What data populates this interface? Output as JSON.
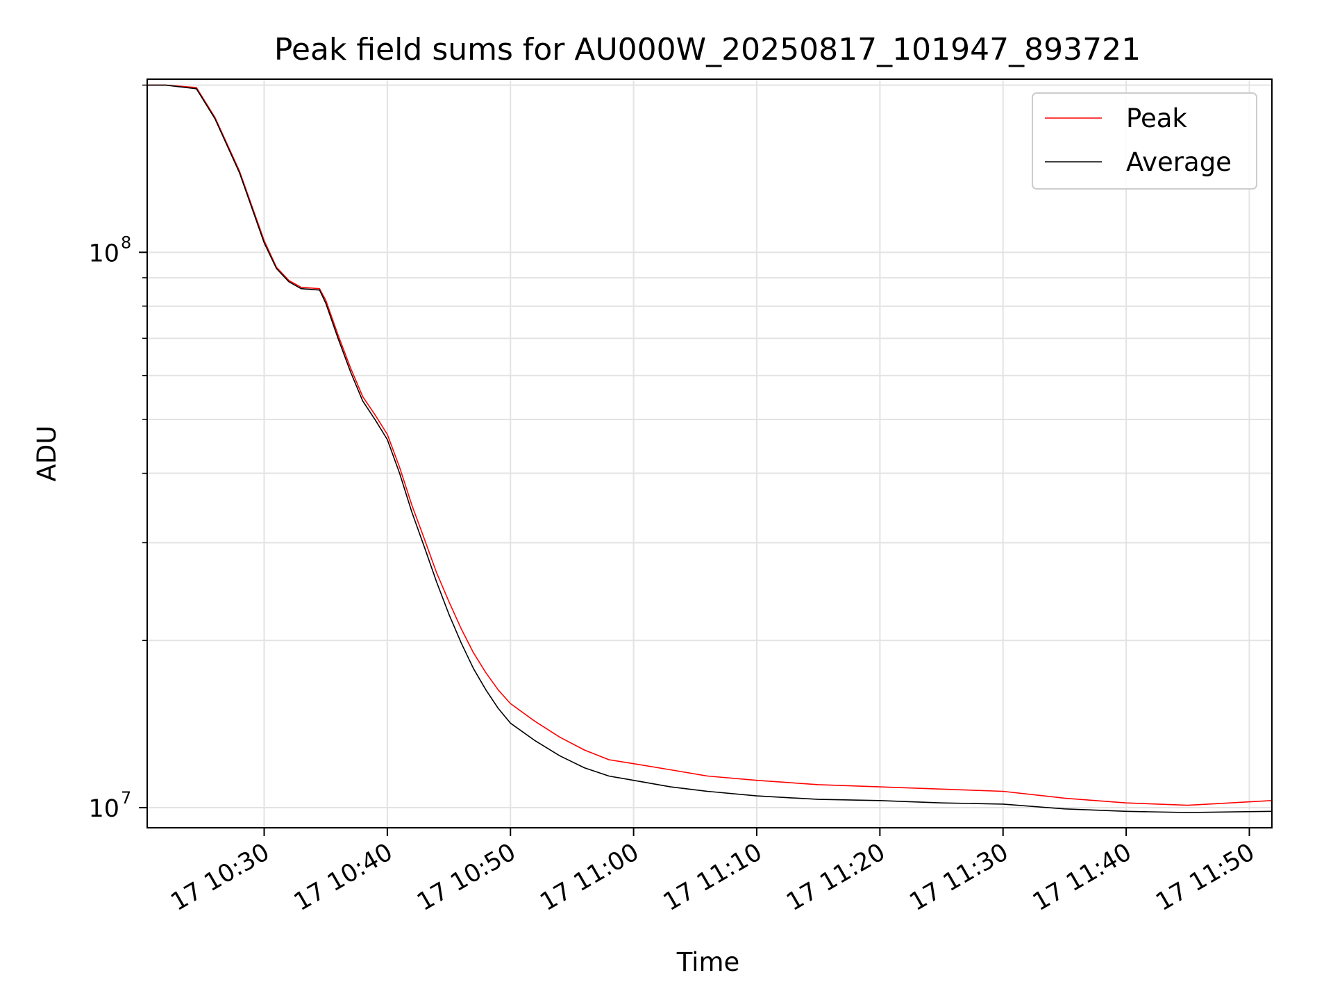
{
  "chart_data": {
    "type": "line",
    "title": "Peak field sums for AU000W_20250817_101947_893721",
    "xlabel": "Time",
    "ylabel": "ADU",
    "y_scale": "log",
    "xlim": [
      "2025-08-17 10:20:30",
      "2025-08-17 11:51:50"
    ],
    "ylim": [
      9200000,
      205000000
    ],
    "grid": true,
    "legend_position": "top-right",
    "x_ticks": [
      {
        "value": "2025-08-17 10:30",
        "label": "17 10:30"
      },
      {
        "value": "2025-08-17 10:40",
        "label": "17 10:40"
      },
      {
        "value": "2025-08-17 10:50",
        "label": "17 10:50"
      },
      {
        "value": "2025-08-17 11:00",
        "label": "17 11:00"
      },
      {
        "value": "2025-08-17 11:10",
        "label": "17 11:10"
      },
      {
        "value": "2025-08-17 11:20",
        "label": "17 11:20"
      },
      {
        "value": "2025-08-17 11:30",
        "label": "17 11:30"
      },
      {
        "value": "2025-08-17 11:40",
        "label": "17 11:40"
      },
      {
        "value": "2025-08-17 11:50",
        "label": "17 11:50"
      }
    ],
    "y_ticks": [
      {
        "value": 10000000,
        "base": "10",
        "exp": "7"
      },
      {
        "value": 100000000,
        "base": "10",
        "exp": "8"
      }
    ],
    "series": [
      {
        "name": "Peak",
        "color": "#ff0000",
        "x": [
          "2025-08-17 10:20:30",
          "2025-08-17 10:22:00",
          "2025-08-17 10:24:30",
          "2025-08-17 10:26:00",
          "2025-08-17 10:28:00",
          "2025-08-17 10:30:00",
          "2025-08-17 10:31:00",
          "2025-08-17 10:32:00",
          "2025-08-17 10:33:00",
          "2025-08-17 10:34:30",
          "2025-08-17 10:35:00",
          "2025-08-17 10:36:00",
          "2025-08-17 10:37:00",
          "2025-08-17 10:38:00",
          "2025-08-17 10:39:00",
          "2025-08-17 10:40:00",
          "2025-08-17 10:41:00",
          "2025-08-17 10:42:00",
          "2025-08-17 10:43:00",
          "2025-08-17 10:44:00",
          "2025-08-17 10:45:00",
          "2025-08-17 10:46:00",
          "2025-08-17 10:47:00",
          "2025-08-17 10:48:00",
          "2025-08-17 10:49:00",
          "2025-08-17 10:50:00",
          "2025-08-17 10:52:00",
          "2025-08-17 10:54:00",
          "2025-08-17 10:56:00",
          "2025-08-17 10:58:00",
          "2025-08-17 11:00:00",
          "2025-08-17 11:03:00",
          "2025-08-17 11:06:00",
          "2025-08-17 11:10:00",
          "2025-08-17 11:15:00",
          "2025-08-17 11:20:00",
          "2025-08-17 11:25:00",
          "2025-08-17 11:30:00",
          "2025-08-17 11:35:00",
          "2025-08-17 11:40:00",
          "2025-08-17 11:45:00",
          "2025-08-17 11:51:50"
        ],
        "y": [
          200000000,
          200000000,
          198000000,
          175000000,
          140000000,
          105000000,
          94000000,
          89000000,
          86500000,
          86000000,
          82000000,
          71000000,
          62000000,
          55000000,
          51000000,
          47000000,
          41000000,
          35000000,
          30500000,
          26500000,
          23500000,
          21000000,
          19000000,
          17500000,
          16300000,
          15400000,
          14300000,
          13400000,
          12700000,
          12200000,
          12000000,
          11700000,
          11400000,
          11200000,
          11000000,
          10900000,
          10800000,
          10700000,
          10400000,
          10200000,
          10100000,
          10300000
        ]
      },
      {
        "name": "Average",
        "color": "#000000",
        "x": [
          "2025-08-17 10:20:30",
          "2025-08-17 10:22:00",
          "2025-08-17 10:24:30",
          "2025-08-17 10:26:00",
          "2025-08-17 10:28:00",
          "2025-08-17 10:30:00",
          "2025-08-17 10:31:00",
          "2025-08-17 10:32:00",
          "2025-08-17 10:33:00",
          "2025-08-17 10:34:30",
          "2025-08-17 10:35:00",
          "2025-08-17 10:36:00",
          "2025-08-17 10:37:00",
          "2025-08-17 10:38:00",
          "2025-08-17 10:39:00",
          "2025-08-17 10:40:00",
          "2025-08-17 10:41:00",
          "2025-08-17 10:42:00",
          "2025-08-17 10:43:00",
          "2025-08-17 10:44:00",
          "2025-08-17 10:45:00",
          "2025-08-17 10:46:00",
          "2025-08-17 10:47:00",
          "2025-08-17 10:48:00",
          "2025-08-17 10:49:00",
          "2025-08-17 10:50:00",
          "2025-08-17 10:52:00",
          "2025-08-17 10:54:00",
          "2025-08-17 10:56:00",
          "2025-08-17 10:58:00",
          "2025-08-17 11:00:00",
          "2025-08-17 11:03:00",
          "2025-08-17 11:06:00",
          "2025-08-17 11:10:00",
          "2025-08-17 11:15:00",
          "2025-08-17 11:20:00",
          "2025-08-17 11:25:00",
          "2025-08-17 11:30:00",
          "2025-08-17 11:35:00",
          "2025-08-17 11:40:00",
          "2025-08-17 11:45:00",
          "2025-08-17 11:51:50"
        ],
        "y": [
          200000000,
          200000000,
          197000000,
          174000000,
          139000000,
          104000000,
          93500000,
          88500000,
          86000000,
          85500000,
          81000000,
          70000000,
          61000000,
          54000000,
          50000000,
          46000000,
          40000000,
          34000000,
          29500000,
          25500000,
          22300000,
          19800000,
          17800000,
          16300000,
          15100000,
          14200000,
          13200000,
          12400000,
          11800000,
          11400000,
          11200000,
          10900000,
          10700000,
          10500000,
          10350000,
          10300000,
          10200000,
          10150000,
          9950000,
          9850000,
          9800000,
          9850000
        ]
      }
    ]
  }
}
